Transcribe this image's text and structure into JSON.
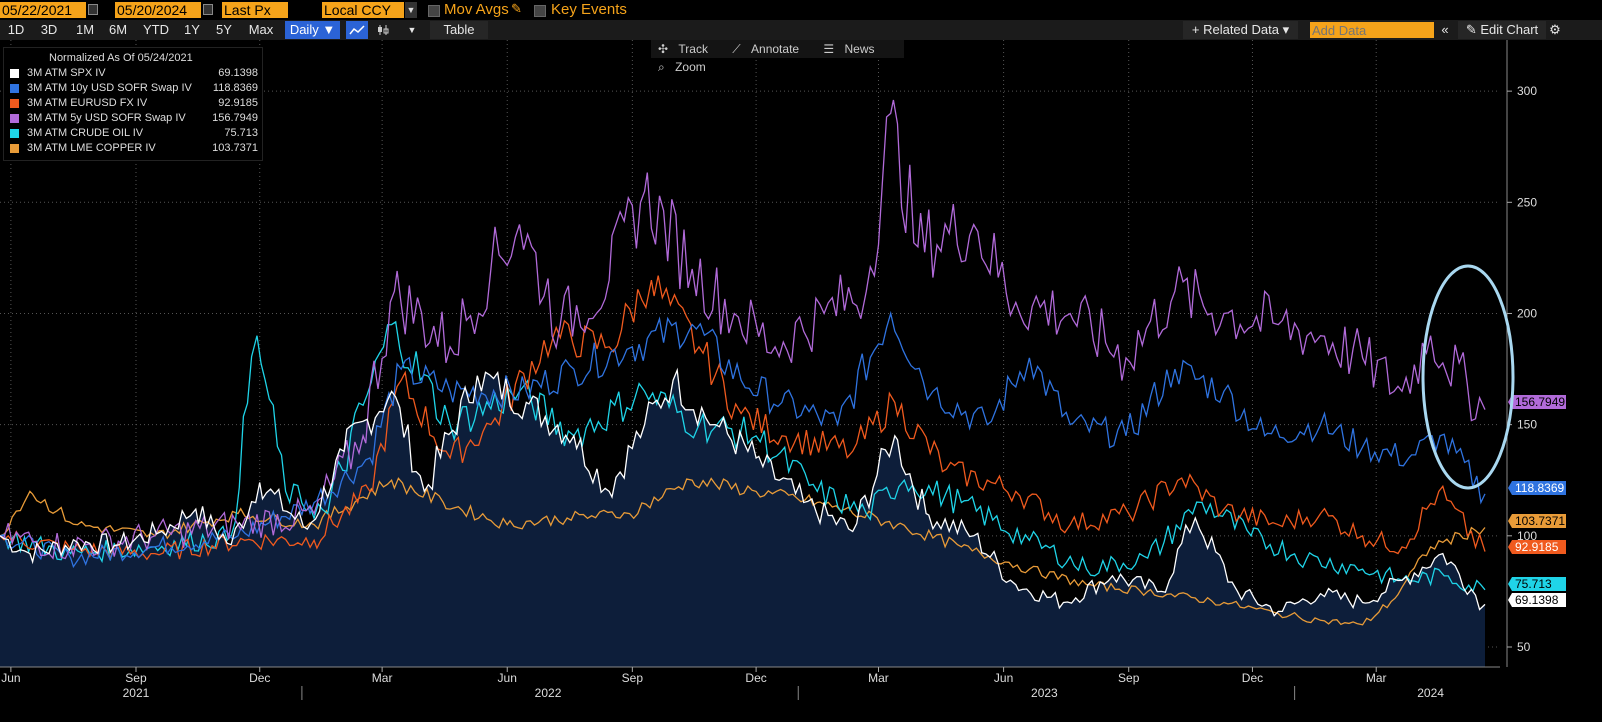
{
  "topbar": {
    "start_date": "05/22/2021",
    "end_date": "05/20/2024",
    "price_field": "Last Px",
    "currency": "Local CCY",
    "mov_avgs": "Mov Avgs",
    "key_events": "Key Events"
  },
  "toolbar": {
    "periods": [
      "1D",
      "3D",
      "1M",
      "6M",
      "YTD",
      "1Y",
      "5Y",
      "Max"
    ],
    "frequency": "Daily ▼",
    "table": "Table",
    "related_data": "+ Related Data ▾",
    "add_data_placeholder": "Add Data",
    "edit_chart": "Edit Chart"
  },
  "chart_tools": {
    "track": "Track",
    "annotate": "Annotate",
    "news": "News",
    "zoom": "Zoom"
  },
  "chart_data": {
    "type": "line",
    "legend_header": "Normalized As Of 05/24/2021",
    "y_ticks": [
      50,
      100,
      150,
      200,
      250,
      300
    ],
    "ylim": [
      41,
      323
    ],
    "x_start": "2021-05-24",
    "x_end": "2024-05-20",
    "x_month_labels": [
      {
        "label": "Jun",
        "date": "2021-06-01"
      },
      {
        "label": "Sep",
        "date": "2021-09-01"
      },
      {
        "label": "Dec",
        "date": "2021-12-01"
      },
      {
        "label": "Mar",
        "date": "2022-03-01"
      },
      {
        "label": "Jun",
        "date": "2022-06-01"
      },
      {
        "label": "Sep",
        "date": "2022-09-01"
      },
      {
        "label": "Dec",
        "date": "2022-12-01"
      },
      {
        "label": "Mar",
        "date": "2023-03-01"
      },
      {
        "label": "Jun",
        "date": "2023-06-01"
      },
      {
        "label": "Sep",
        "date": "2023-09-01"
      },
      {
        "label": "Dec",
        "date": "2023-12-01"
      },
      {
        "label": "Mar",
        "date": "2024-03-01"
      }
    ],
    "x_year_labels": [
      {
        "label": "2021",
        "date": "2021-09-01"
      },
      {
        "label": "2022",
        "date": "2022-07-01"
      },
      {
        "label": "2023",
        "date": "2023-07-01"
      },
      {
        "label": "2024",
        "date": "2024-04-10"
      }
    ],
    "year_separators": [
      "2022-01-01",
      "2023-01-01",
      "2024-01-01"
    ],
    "series": [
      {
        "name": "3M ATM SPX IV",
        "color": "#ffffff",
        "last": "69.1398",
        "fill": true,
        "points": [
          [
            "2021-05-24",
            100
          ],
          [
            "2021-06-15",
            92
          ],
          [
            "2021-07-20",
            97
          ],
          [
            "2021-08-20",
            96
          ],
          [
            "2021-09-20",
            102
          ],
          [
            "2021-10-15",
            112
          ],
          [
            "2021-11-10",
            96
          ],
          [
            "2021-12-01",
            124
          ],
          [
            "2022-01-05",
            103
          ],
          [
            "2022-02-01",
            138
          ],
          [
            "2022-03-08",
            165
          ],
          [
            "2022-04-01",
            120
          ],
          [
            "2022-05-10",
            172
          ],
          [
            "2022-06-15",
            160
          ],
          [
            "2022-07-20",
            145
          ],
          [
            "2022-08-15",
            120
          ],
          [
            "2022-09-10",
            150
          ],
          [
            "2022-10-01",
            170
          ],
          [
            "2022-11-01",
            150
          ],
          [
            "2022-12-01",
            135
          ],
          [
            "2023-01-05",
            115
          ],
          [
            "2023-02-10",
            102
          ],
          [
            "2023-03-13",
            145
          ],
          [
            "2023-04-05",
            110
          ],
          [
            "2023-05-10",
            100
          ],
          [
            "2023-06-10",
            78
          ],
          [
            "2023-07-15",
            70
          ],
          [
            "2023-08-20",
            82
          ],
          [
            "2023-09-25",
            75
          ],
          [
            "2023-10-20",
            108
          ],
          [
            "2023-11-20",
            75
          ],
          [
            "2023-12-20",
            66
          ],
          [
            "2024-01-20",
            74
          ],
          [
            "2024-02-20",
            70
          ],
          [
            "2024-03-20",
            80
          ],
          [
            "2024-04-19",
            92
          ],
          [
            "2024-05-20",
            69.14
          ]
        ]
      },
      {
        "name": "3M ATM 10y USD SOFR Swap IV",
        "color": "#2f73e0",
        "last": "118.8369",
        "fill": false,
        "points": [
          [
            "2021-05-24",
            100
          ],
          [
            "2021-07-15",
            90
          ],
          [
            "2021-09-15",
            95
          ],
          [
            "2021-11-15",
            100
          ],
          [
            "2022-01-10",
            115
          ],
          [
            "2022-02-20",
            135
          ],
          [
            "2022-03-15",
            175
          ],
          [
            "2022-04-20",
            165
          ],
          [
            "2022-06-15",
            165
          ],
          [
            "2022-07-20",
            175
          ],
          [
            "2022-09-01",
            185
          ],
          [
            "2022-10-15",
            195
          ],
          [
            "2022-11-20",
            170
          ],
          [
            "2022-12-20",
            160
          ],
          [
            "2023-01-30",
            150
          ],
          [
            "2023-03-10",
            200
          ],
          [
            "2023-04-10",
            165
          ],
          [
            "2023-05-20",
            150
          ],
          [
            "2023-06-20",
            180
          ],
          [
            "2023-07-20",
            150
          ],
          [
            "2023-08-30",
            145
          ],
          [
            "2023-10-05",
            175
          ],
          [
            "2023-11-10",
            165
          ],
          [
            "2023-12-10",
            145
          ],
          [
            "2024-01-20",
            150
          ],
          [
            "2024-02-20",
            140
          ],
          [
            "2024-03-25",
            135
          ],
          [
            "2024-04-17",
            145
          ],
          [
            "2024-05-20",
            118.84
          ]
        ]
      },
      {
        "name": "3M ATM EURUSD FX IV",
        "color": "#f05a1e",
        "last": "92.9185",
        "fill": false,
        "points": [
          [
            "2021-05-24",
            100
          ],
          [
            "2021-07-15",
            94
          ],
          [
            "2021-09-15",
            92
          ],
          [
            "2021-11-20",
            98
          ],
          [
            "2022-01-10",
            98
          ],
          [
            "2022-02-20",
            120
          ],
          [
            "2022-03-15",
            170
          ],
          [
            "2022-04-20",
            135
          ],
          [
            "2022-05-20",
            150
          ],
          [
            "2022-07-05",
            190
          ],
          [
            "2022-08-15",
            185
          ],
          [
            "2022-09-15",
            215
          ],
          [
            "2022-10-20",
            185
          ],
          [
            "2022-11-20",
            155
          ],
          [
            "2022-12-20",
            145
          ],
          [
            "2023-02-10",
            138
          ],
          [
            "2023-03-13",
            160
          ],
          [
            "2023-04-20",
            130
          ],
          [
            "2023-06-10",
            120
          ],
          [
            "2023-07-20",
            105
          ],
          [
            "2023-09-01",
            110
          ],
          [
            "2023-10-10",
            126
          ],
          [
            "2023-11-10",
            112
          ],
          [
            "2023-12-20",
            105
          ],
          [
            "2024-01-20",
            110
          ],
          [
            "2024-02-20",
            100
          ],
          [
            "2024-03-20",
            95
          ],
          [
            "2024-04-16",
            120
          ],
          [
            "2024-05-20",
            92.92
          ]
        ]
      },
      {
        "name": "3M ATM 5y USD SOFR Swap IV",
        "color": "#b16ad9",
        "last": "156.7949",
        "fill": false,
        "points": [
          [
            "2021-05-24",
            100
          ],
          [
            "2021-07-15",
            95
          ],
          [
            "2021-09-15",
            100
          ],
          [
            "2021-11-15",
            105
          ],
          [
            "2022-01-10",
            110
          ],
          [
            "2022-02-15",
            145
          ],
          [
            "2022-03-10",
            210
          ],
          [
            "2022-04-20",
            185
          ],
          [
            "2022-05-20",
            220
          ],
          [
            "2022-06-10",
            240
          ],
          [
            "2022-07-10",
            195
          ],
          [
            "2022-08-15",
            215
          ],
          [
            "2022-09-10",
            255
          ],
          [
            "2022-10-15",
            220
          ],
          [
            "2022-11-15",
            200
          ],
          [
            "2022-12-15",
            185
          ],
          [
            "2023-01-20",
            200
          ],
          [
            "2023-02-20",
            210
          ],
          [
            "2023-03-10",
            290
          ],
          [
            "2023-03-30",
            230
          ],
          [
            "2023-05-10",
            240
          ],
          [
            "2023-06-10",
            205
          ],
          [
            "2023-07-20",
            200
          ],
          [
            "2023-08-30",
            180
          ],
          [
            "2023-10-05",
            210
          ],
          [
            "2023-11-10",
            200
          ],
          [
            "2023-12-20",
            195
          ],
          [
            "2024-01-20",
            190
          ],
          [
            "2024-02-20",
            180
          ],
          [
            "2024-03-20",
            165
          ],
          [
            "2024-04-10",
            190
          ],
          [
            "2024-05-20",
            156.79
          ]
        ]
      },
      {
        "name": "3M ATM CRUDE OIL IV",
        "color": "#1fd4e8",
        "last": "75.713",
        "fill": false,
        "points": [
          [
            "2021-05-24",
            100
          ],
          [
            "2021-07-15",
            92
          ],
          [
            "2021-09-15",
            95
          ],
          [
            "2021-11-10",
            100
          ],
          [
            "2021-11-29",
            190
          ],
          [
            "2021-12-20",
            120
          ],
          [
            "2022-01-20",
            110
          ],
          [
            "2022-03-08",
            195
          ],
          [
            "2022-04-20",
            150
          ],
          [
            "2022-06-10",
            165
          ],
          [
            "2022-07-20",
            145
          ],
          [
            "2022-09-10",
            165
          ],
          [
            "2022-10-20",
            150
          ],
          [
            "2022-12-01",
            145
          ],
          [
            "2023-01-15",
            120
          ],
          [
            "2023-02-20",
            110
          ],
          [
            "2023-03-20",
            125
          ],
          [
            "2023-05-01",
            115
          ],
          [
            "2023-06-20",
            98
          ],
          [
            "2023-08-01",
            85
          ],
          [
            "2023-09-15",
            90
          ],
          [
            "2023-10-25",
            115
          ],
          [
            "2023-11-30",
            100
          ],
          [
            "2024-01-10",
            90
          ],
          [
            "2024-02-20",
            85
          ],
          [
            "2024-03-20",
            80
          ],
          [
            "2024-04-20",
            82
          ],
          [
            "2024-05-20",
            75.71
          ]
        ]
      },
      {
        "name": "3M ATM LME COPPER IV",
        "color": "#e89b38",
        "last": "103.7371",
        "fill": false,
        "points": [
          [
            "2021-05-24",
            100
          ],
          [
            "2021-06-15",
            120
          ],
          [
            "2021-07-20",
            105
          ],
          [
            "2021-09-15",
            100
          ],
          [
            "2021-11-15",
            110
          ],
          [
            "2022-01-10",
            105
          ],
          [
            "2022-03-08",
            125
          ],
          [
            "2022-04-15",
            115
          ],
          [
            "2022-06-01",
            105
          ],
          [
            "2022-07-15",
            108
          ],
          [
            "2022-08-30",
            110
          ],
          [
            "2022-10-15",
            125
          ],
          [
            "2022-12-01",
            120
          ],
          [
            "2023-01-15",
            115
          ],
          [
            "2023-03-15",
            105
          ],
          [
            "2023-05-01",
            95
          ],
          [
            "2023-06-20",
            85
          ],
          [
            "2023-08-01",
            78
          ],
          [
            "2023-09-15",
            75
          ],
          [
            "2023-11-10",
            70
          ],
          [
            "2023-12-20",
            65
          ],
          [
            "2024-01-20",
            62
          ],
          [
            "2024-02-20",
            60
          ],
          [
            "2024-03-15",
            72
          ],
          [
            "2024-04-10",
            95
          ],
          [
            "2024-05-20",
            103.74
          ]
        ]
      }
    ],
    "label_order": [
      "5y USD SOFR",
      "10y USD SOFR",
      "LME COPPER",
      "EURUSD",
      "CRUDE OIL",
      "SPX"
    ]
  },
  "legend_values": [
    "69.1398",
    "118.8369",
    "92.9185",
    "156.7949",
    "75.713",
    "103.7371"
  ],
  "colors": {
    "bg": "#000000",
    "fill": "#0d1e3a",
    "accent": "#f5a31a",
    "highlight": "#2b63d6",
    "circle": "#a9d8f0"
  }
}
